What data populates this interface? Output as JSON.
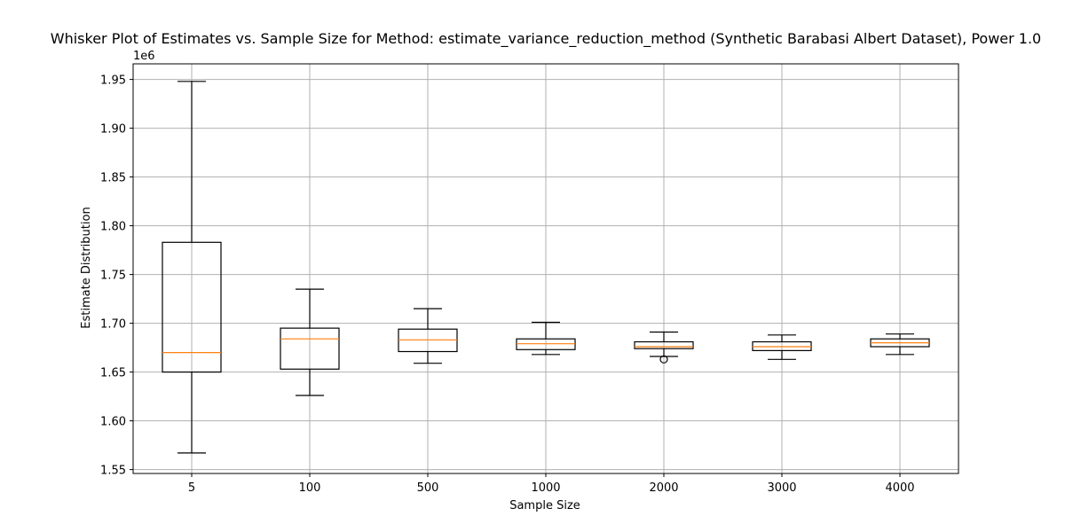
{
  "chart_data": {
    "type": "box",
    "title": "Whisker Plot of Estimates vs. Sample Size for Method: estimate_variance_reduction_method (Synthetic Barabasi Albert Dataset), Power 1.0",
    "xlabel": "Sample Size",
    "ylabel": "Estimate Distribution",
    "y_offset_label": "1e6",
    "ylim": [
      1.546,
      1.966
    ],
    "yticks": [
      1.55,
      1.6,
      1.65,
      1.7,
      1.75,
      1.8,
      1.85,
      1.9,
      1.95
    ],
    "ytick_labels": [
      "1.55",
      "1.60",
      "1.65",
      "1.70",
      "1.75",
      "1.80",
      "1.85",
      "1.90",
      "1.95"
    ],
    "grid": true,
    "categories": [
      "5",
      "100",
      "500",
      "1000",
      "2000",
      "3000",
      "4000"
    ],
    "boxes": [
      {
        "category": "5",
        "whisker_low": 1.567,
        "q1": 1.65,
        "median": 1.67,
        "q3": 1.783,
        "whisker_high": 1.948,
        "fliers": []
      },
      {
        "category": "100",
        "whisker_low": 1.626,
        "q1": 1.653,
        "median": 1.684,
        "q3": 1.695,
        "whisker_high": 1.735,
        "fliers": []
      },
      {
        "category": "500",
        "whisker_low": 1.659,
        "q1": 1.671,
        "median": 1.683,
        "q3": 1.694,
        "whisker_high": 1.715,
        "fliers": []
      },
      {
        "category": "1000",
        "whisker_low": 1.668,
        "q1": 1.673,
        "median": 1.679,
        "q3": 1.684,
        "whisker_high": 1.701,
        "fliers": []
      },
      {
        "category": "2000",
        "whisker_low": 1.666,
        "q1": 1.674,
        "median": 1.676,
        "q3": 1.681,
        "whisker_high": 1.691,
        "fliers": [
          1.663
        ]
      },
      {
        "category": "3000",
        "whisker_low": 1.663,
        "q1": 1.672,
        "median": 1.676,
        "q3": 1.681,
        "whisker_high": 1.688,
        "fliers": []
      },
      {
        "category": "4000",
        "whisker_low": 1.668,
        "q1": 1.676,
        "median": 1.68,
        "q3": 1.684,
        "whisker_high": 1.689,
        "fliers": []
      }
    ],
    "colors": {
      "box": "#000000",
      "median": "#ff7f0e",
      "grid": "#b0b0b0"
    }
  }
}
